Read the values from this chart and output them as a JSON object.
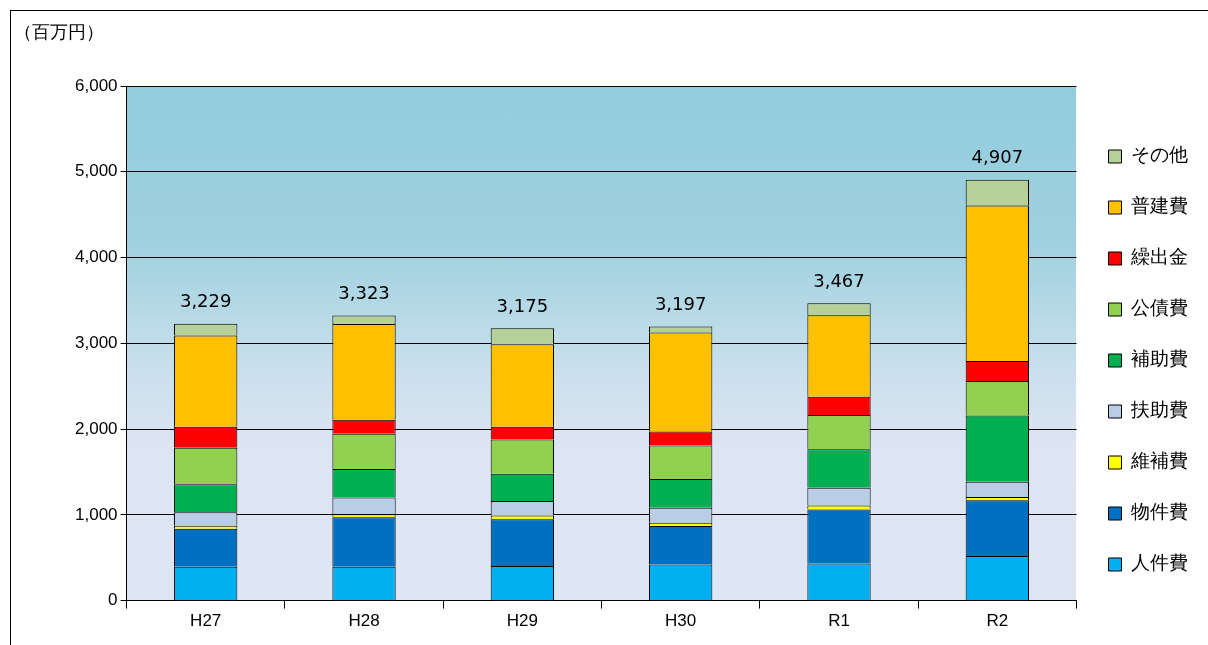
{
  "chart_data": {
    "type": "bar",
    "stacked": true,
    "ylabel": "（百万円）",
    "categories": [
      "H27",
      "H28",
      "H29",
      "H30",
      "R1",
      "R2"
    ],
    "series": [
      {
        "name": "人件費",
        "color": "#00b0f0",
        "values": [
          394,
          394,
          402,
          421,
          433,
          520
        ]
      },
      {
        "name": "物件費",
        "color": "#0070c0",
        "values": [
          445,
          578,
          547,
          449,
          630,
          649
        ]
      },
      {
        "name": "維補費",
        "color": "#ffff00",
        "values": [
          35,
          36,
          43,
          39,
          47,
          40
        ]
      },
      {
        "name": "扶助費",
        "color": "#b9cde5",
        "values": [
          157,
          193,
          169,
          174,
          205,
          177
        ]
      },
      {
        "name": "補助費",
        "color": "#00b050",
        "values": [
          327,
          334,
          319,
          334,
          449,
          771
        ]
      },
      {
        "name": "公債費",
        "color": "#92d050",
        "values": [
          425,
          410,
          398,
          390,
          401,
          402
        ]
      },
      {
        "name": "繰出金",
        "color": "#ff0000",
        "values": [
          245,
          165,
          150,
          165,
          213,
          236
        ]
      },
      {
        "name": "普建費",
        "color": "#ffc000",
        "values": [
          1063,
          1114,
          960,
          1154,
          949,
          1811
        ]
      },
      {
        "name": "その他",
        "color": "#b7d09a",
        "values": [
          138,
          99,
          187,
          71,
          140,
          301
        ]
      }
    ],
    "totals": [
      "3,229",
      "3,323",
      "3,175",
      "3,197",
      "3,467",
      "4,907"
    ],
    "ylim": [
      0,
      6000
    ],
    "yticks": [
      0,
      {
        "value": 1000,
        "label": "1,000"
      },
      {
        "value": 2000,
        "label": "2,000"
      },
      {
        "value": 3000,
        "label": "3,000"
      },
      {
        "value": 4000,
        "label": "4,000"
      },
      {
        "value": 5000,
        "label": "5,000"
      },
      {
        "value": 6000,
        "label": "6,000"
      }
    ],
    "grid": "y",
    "legend": "right"
  }
}
